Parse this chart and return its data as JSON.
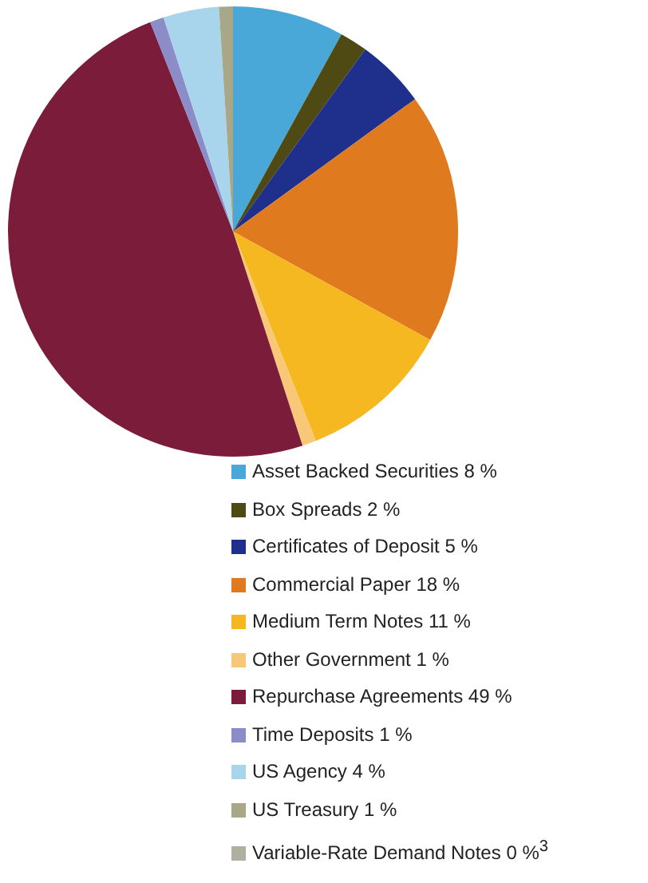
{
  "chart_data": {
    "type": "pie",
    "categories": [
      "Asset Backed Securities",
      "Box Spreads",
      "Certificates of Deposit",
      "Commercial Paper",
      "Medium Term Notes",
      "Other Government",
      "Repurchase Agreements",
      "Time Deposits",
      "US Agency",
      "US Treasury",
      "Variable-Rate Demand Notes"
    ],
    "values": [
      8,
      2,
      5,
      18,
      11,
      1,
      49,
      1,
      4,
      1,
      0
    ],
    "value_labels": [
      "8 %",
      "2 %",
      "5 %",
      "18 %",
      "11 %",
      "1 %",
      "49 %",
      "1 %",
      "4 %",
      "1 %",
      "0 %$^{3}$"
    ],
    "colors": [
      "#4aa8d8",
      "#4f4a14",
      "#1f2f8c",
      "#e07a1f",
      "#f5b820",
      "#f8c878",
      "#7a1c3a",
      "#8c8cc8",
      "#a8d4ec",
      "#a8a888",
      "#b0b0a0"
    ],
    "legend": "bottom"
  }
}
